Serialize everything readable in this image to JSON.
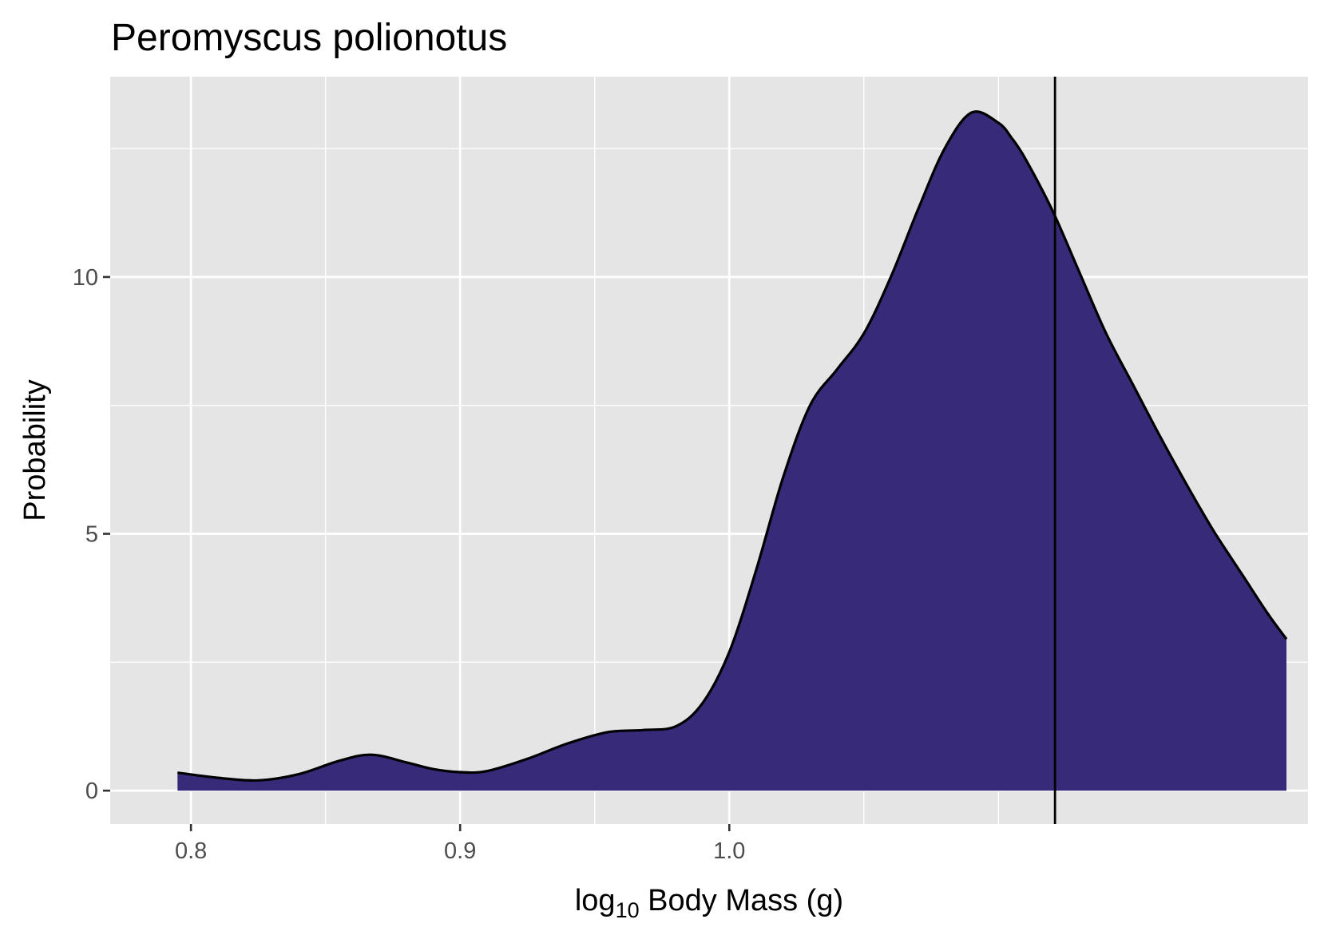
{
  "chart_data": {
    "type": "area",
    "title": "Peromyscus polionotus",
    "xlabel": {
      "main": "log",
      "sub": "10",
      "rest": " Body Mass (g)"
    },
    "ylabel": "Probability",
    "xlim": [
      0.77,
      1.215
    ],
    "ylim": [
      -0.65,
      13.9
    ],
    "x_ticks": [
      0.8,
      0.9,
      1.0
    ],
    "x_tick_labels": [
      "0.8",
      "0.9",
      "1.0"
    ],
    "x_minor_gridlines": [
      0.85,
      0.95,
      1.05,
      1.1
    ],
    "y_ticks": [
      0,
      5,
      10
    ],
    "y_tick_labels": [
      "0",
      "5",
      "10"
    ],
    "y_minor_gridlines": [
      2.5,
      7.5,
      12.5
    ],
    "grid": true,
    "legend": "none",
    "fill_color": "#372A78",
    "line_color": "#000000",
    "panel_color": "#E5E5E5",
    "vline_x": 1.121,
    "density": {
      "x": [
        0.795,
        0.81,
        0.825,
        0.84,
        0.855,
        0.867,
        0.88,
        0.89,
        0.9,
        0.91,
        0.925,
        0.94,
        0.955,
        0.968,
        0.98,
        0.99,
        1.0,
        1.01,
        1.02,
        1.03,
        1.04,
        1.05,
        1.06,
        1.07,
        1.08,
        1.09,
        1.1,
        1.105,
        1.11,
        1.12,
        1.13,
        1.14,
        1.15,
        1.16,
        1.17,
        1.18,
        1.19,
        1.2,
        1.207
      ],
      "y": [
        0.35,
        0.25,
        0.2,
        0.32,
        0.58,
        0.7,
        0.55,
        0.42,
        0.36,
        0.38,
        0.62,
        0.92,
        1.14,
        1.18,
        1.25,
        1.7,
        2.7,
        4.3,
        6.1,
        7.5,
        8.2,
        8.9,
        10.0,
        11.3,
        12.5,
        13.2,
        13.0,
        12.7,
        12.3,
        11.3,
        10.1,
        8.9,
        7.9,
        6.9,
        5.95,
        5.05,
        4.25,
        3.45,
        2.95
      ]
    }
  }
}
